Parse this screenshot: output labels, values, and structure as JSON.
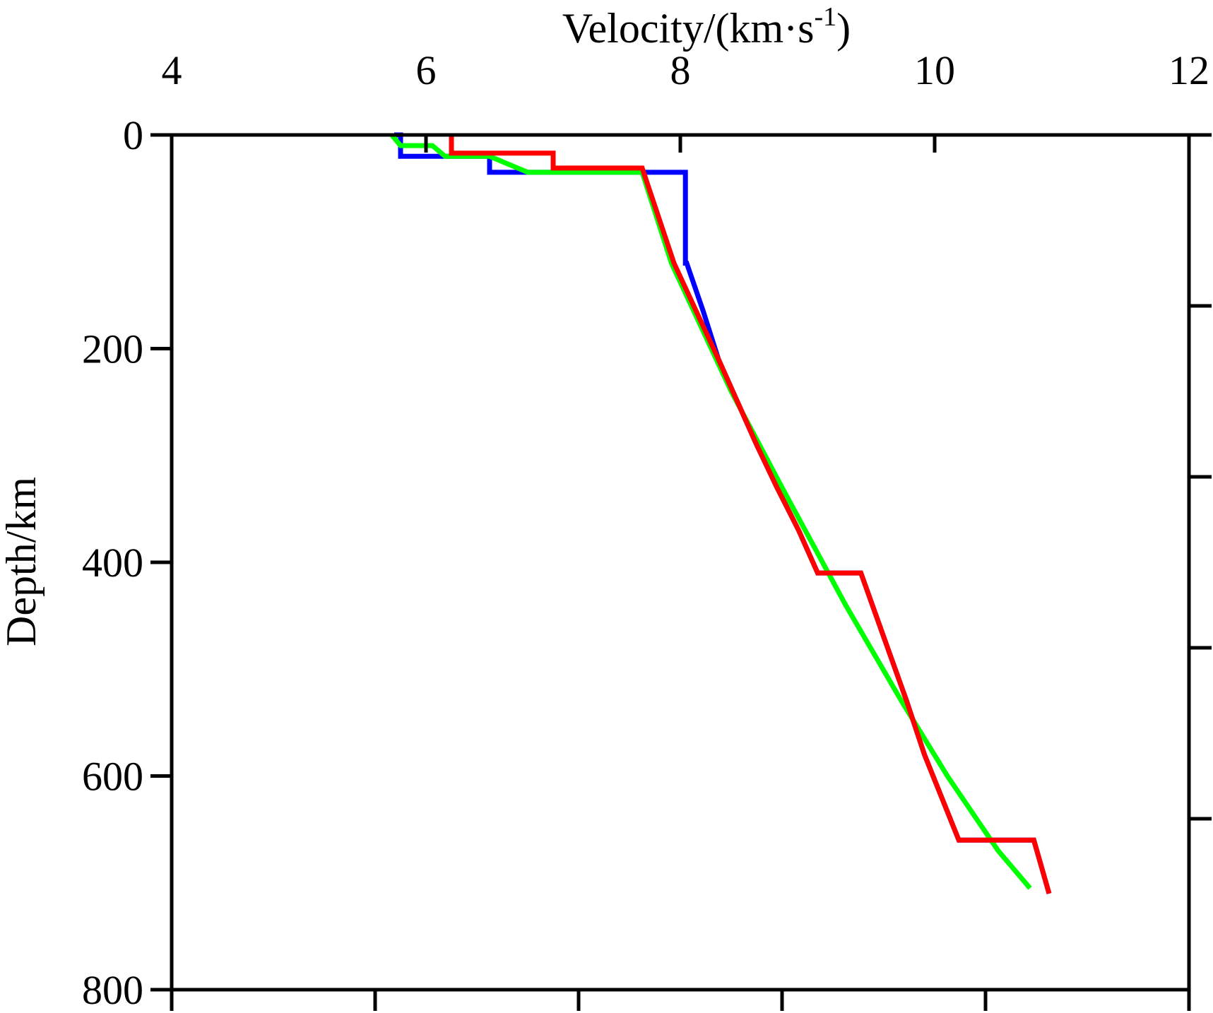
{
  "chart_data": {
    "type": "line",
    "xlabel": "Velocity/(km·s",
    "xlabel_sup": "-1",
    "xlabel_close": ")",
    "ylabel": "Depth/km",
    "xlim": [
      4,
      12
    ],
    "ylim": [
      0,
      800
    ],
    "y_inverted": true,
    "x_axis_position": "top",
    "grid": false,
    "legend": "none",
    "x_ticks": [
      4,
      6,
      8,
      10,
      12
    ],
    "x_tick_labels": [
      "4",
      "6",
      "8",
      "10",
      "12"
    ],
    "y_ticks": [
      0,
      200,
      400,
      600,
      800
    ],
    "y_tick_labels": [
      "0",
      "200",
      "400",
      "600",
      "800"
    ],
    "bottom_minor_ticks": [
      5.6,
      7.2,
      8.8,
      10.4
    ],
    "right_minor_ticks": [
      160,
      320,
      480,
      640
    ],
    "series": [
      {
        "color": "#0000ff",
        "points": [
          [
            5.75,
            0
          ],
          [
            5.8,
            0
          ],
          [
            5.8,
            20
          ],
          [
            6.5,
            20
          ],
          [
            6.5,
            35
          ],
          [
            8.04,
            35
          ],
          [
            8.04,
            120
          ],
          [
            8.05,
            120
          ],
          [
            8.18,
            165
          ],
          [
            8.3,
            210
          ],
          [
            8.45,
            250
          ],
          [
            8.6,
            290
          ],
          [
            8.76,
            330
          ],
          [
            8.93,
            370
          ],
          [
            9.08,
            410
          ],
          [
            9.42,
            410
          ],
          [
            9.6,
            470
          ],
          [
            9.78,
            530
          ],
          [
            9.92,
            580
          ],
          [
            10.19,
            660
          ],
          [
            10.78,
            660
          ],
          [
            10.9,
            710
          ]
        ]
      },
      {
        "color": "#00ff00",
        "points": [
          [
            5.73,
            0
          ],
          [
            5.8,
            10
          ],
          [
            6.05,
            10
          ],
          [
            6.15,
            20
          ],
          [
            6.5,
            20
          ],
          [
            6.8,
            35
          ],
          [
            7.7,
            35
          ],
          [
            7.93,
            120
          ],
          [
            8.4,
            240
          ],
          [
            8.8,
            330
          ],
          [
            9.3,
            440
          ],
          [
            9.74,
            530
          ],
          [
            10.1,
            600
          ],
          [
            10.5,
            670
          ],
          [
            10.75,
            705
          ]
        ]
      },
      {
        "color": "#ff0000",
        "points": [
          [
            6.2,
            0
          ],
          [
            6.2,
            17
          ],
          [
            7.0,
            17
          ],
          [
            7.0,
            31
          ],
          [
            7.7,
            31
          ],
          [
            7.95,
            120
          ],
          [
            8.3,
            210
          ],
          [
            8.45,
            250
          ],
          [
            8.6,
            290
          ],
          [
            8.76,
            330
          ],
          [
            8.93,
            370
          ],
          [
            9.08,
            410
          ],
          [
            9.42,
            410
          ],
          [
            9.6,
            470
          ],
          [
            9.78,
            530
          ],
          [
            9.92,
            580
          ],
          [
            10.19,
            660
          ],
          [
            10.78,
            660
          ],
          [
            10.9,
            710
          ]
        ]
      }
    ]
  }
}
